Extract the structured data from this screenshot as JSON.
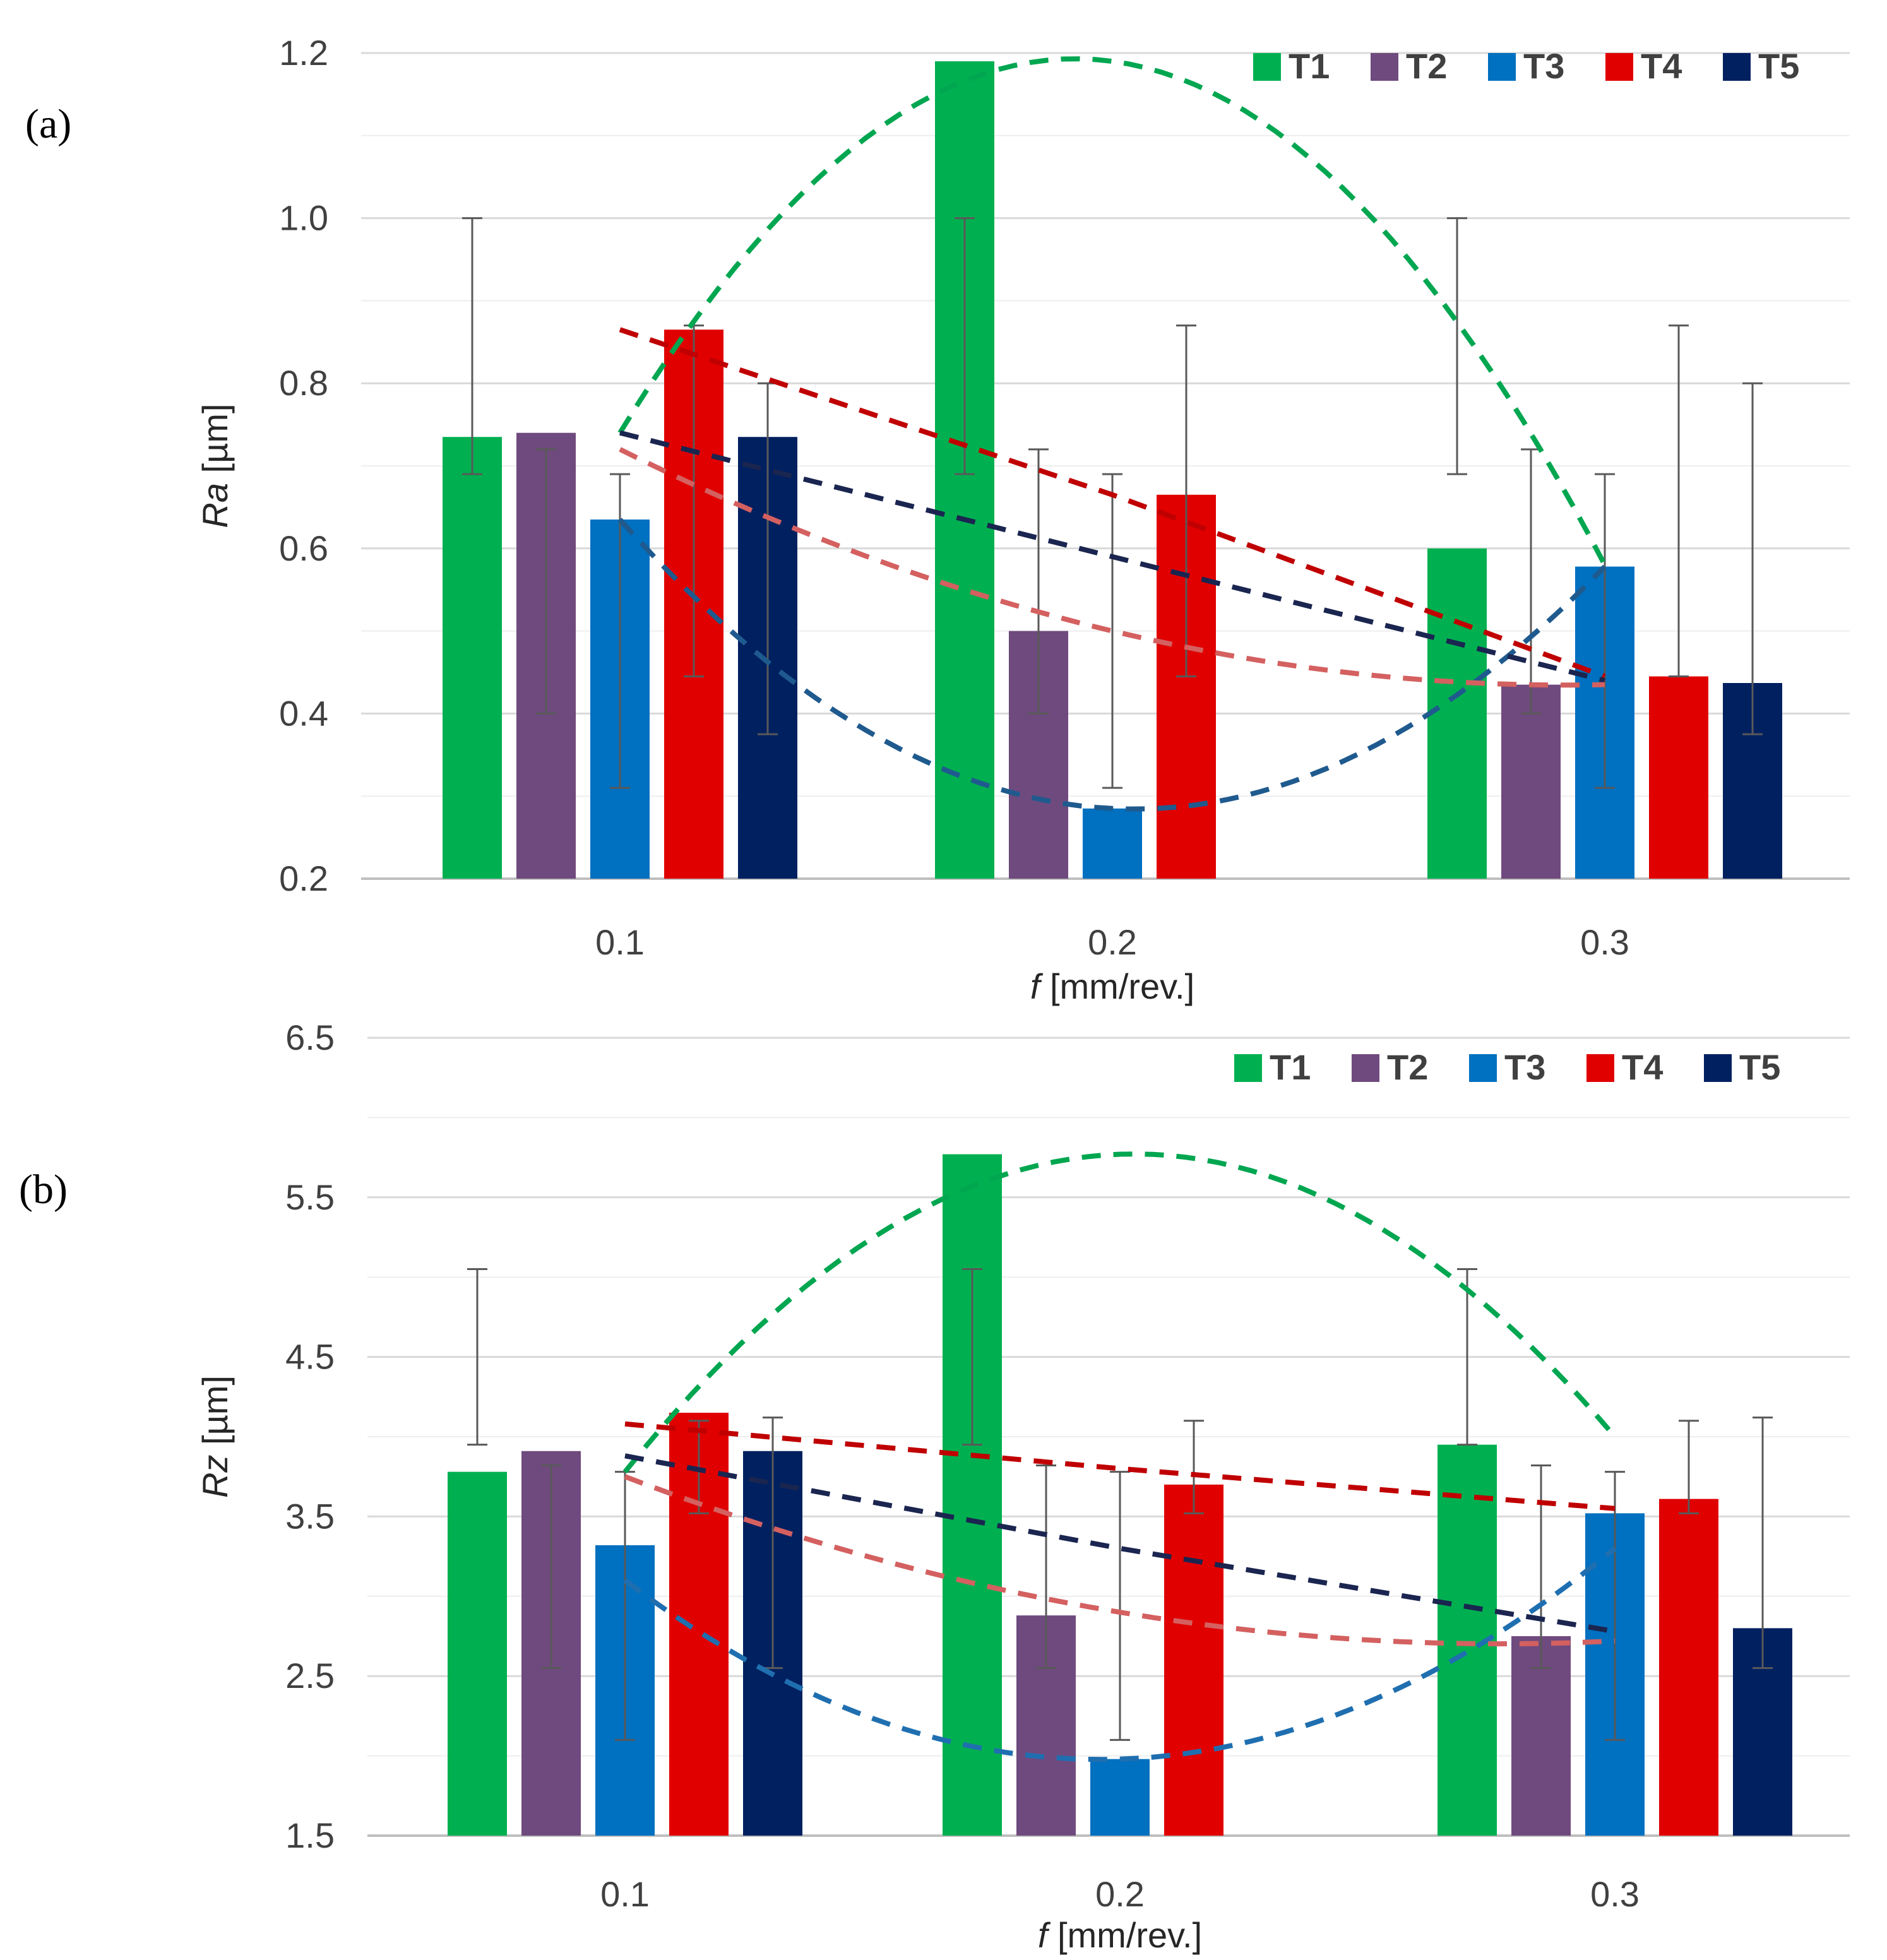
{
  "chart_data": [
    {
      "panel_label": "(a)",
      "type": "bar",
      "categories": [
        "0.1",
        "0.2",
        "0.3"
      ],
      "xlabel_italic": "f",
      "xlabel_rest": " [mm/rev.]",
      "ylabel_italic": "Ra",
      "ylabel_rest": " [µm]",
      "ylim": [
        0.2,
        1.2
      ],
      "yticks": [
        "0.2",
        "0.4",
        "0.6",
        "0.8",
        "1.0",
        "1.2"
      ],
      "grid": true,
      "legend_position": "top-right",
      "series": [
        {
          "name": "T1",
          "color": "#00B050",
          "values": [
            0.735,
            1.19,
            0.6
          ],
          "error_low": [
            0.69,
            0.69,
            0.69
          ],
          "error_high": [
            1.0,
            1.0,
            1.0
          ]
        },
        {
          "name": "T2",
          "color": "#6F4A7E",
          "values": [
            0.74,
            0.5,
            0.435
          ],
          "error_low": [
            0.4,
            0.4,
            0.4
          ],
          "error_high": [
            0.72,
            0.72,
            0.72
          ]
        },
        {
          "name": "T3",
          "color": "#0070C0",
          "values": [
            0.635,
            0.285,
            0.578
          ],
          "error_low": [
            0.31,
            0.31,
            0.31
          ],
          "error_high": [
            0.69,
            0.69,
            0.69
          ]
        },
        {
          "name": "T4",
          "color": "#E00000",
          "values": [
            0.865,
            0.665,
            0.445
          ],
          "error_low": [
            0.445,
            0.445,
            0.445
          ],
          "error_high": [
            0.87,
            0.87,
            0.87
          ]
        },
        {
          "name": "T5",
          "color": "#002060",
          "values": [
            0.735,
            null,
            0.437
          ],
          "error_low": [
            0.375,
            null,
            0.375
          ],
          "error_high": [
            0.8,
            null,
            0.8
          ]
        }
      ],
      "trend_lines": [
        {
          "color": "#00A650",
          "curve": "quadratic",
          "points": [
            [
              0.1,
              0.74
            ],
            [
              0.2,
              1.19
            ],
            [
              0.3,
              0.58
            ]
          ]
        },
        {
          "color": "#1F5A8E",
          "curve": "quadratic",
          "points": [
            [
              0.1,
              0.635
            ],
            [
              0.2,
              0.285
            ],
            [
              0.3,
              0.578
            ]
          ]
        },
        {
          "color": "#C00000",
          "curve": "linear",
          "points": [
            [
              0.1,
              0.865
            ],
            [
              0.2,
              0.665
            ],
            [
              0.3,
              0.445
            ]
          ]
        },
        {
          "color": "#1A2550",
          "curve": "linear",
          "points": [
            [
              0.1,
              0.74
            ],
            [
              0.2,
              0.59
            ],
            [
              0.3,
              0.44
            ]
          ]
        },
        {
          "color": "#D46060",
          "curve": "quadratic",
          "points": [
            [
              0.1,
              0.72
            ],
            [
              0.2,
              0.5
            ],
            [
              0.3,
              0.435
            ]
          ]
        }
      ]
    },
    {
      "panel_label": "(b)",
      "type": "bar",
      "categories": [
        "0.1",
        "0.2",
        "0.3"
      ],
      "xlabel_italic": "f",
      "xlabel_rest": " [mm/rev.]",
      "ylabel_italic": "Rz",
      "ylabel_rest": " [µm]",
      "ylim": [
        1.5,
        6.5
      ],
      "yticks": [
        "1.5",
        "2.5",
        "3.5",
        "4.5",
        "5.5",
        "6.5"
      ],
      "grid": true,
      "legend_position": "top-right",
      "series": [
        {
          "name": "T1",
          "color": "#00B050",
          "values": [
            3.78,
            5.77,
            3.95
          ],
          "error_low": [
            3.95,
            3.95,
            3.95
          ],
          "error_high": [
            5.05,
            5.05,
            5.05
          ]
        },
        {
          "name": "T2",
          "color": "#6F4A7E",
          "values": [
            3.91,
            2.88,
            2.75
          ],
          "error_low": [
            2.55,
            2.55,
            2.55
          ],
          "error_high": [
            3.82,
            3.82,
            3.82
          ]
        },
        {
          "name": "T3",
          "color": "#0070C0",
          "values": [
            3.32,
            1.98,
            3.52
          ],
          "error_low": [
            2.1,
            2.1,
            2.1
          ],
          "error_high": [
            3.78,
            3.78,
            3.78
          ]
        },
        {
          "name": "T4",
          "color": "#E00000",
          "values": [
            4.15,
            3.7,
            3.61
          ],
          "error_low": [
            3.52,
            3.52,
            3.52
          ],
          "error_high": [
            4.1,
            4.1,
            4.1
          ]
        },
        {
          "name": "T5",
          "color": "#002060",
          "values": [
            3.91,
            null,
            2.8
          ],
          "error_low": [
            2.55,
            null,
            2.55
          ],
          "error_high": [
            4.12,
            null,
            4.12
          ]
        }
      ],
      "trend_lines": [
        {
          "color": "#00A650",
          "curve": "quadratic",
          "points": [
            [
              0.1,
              3.78
            ],
            [
              0.2,
              5.77
            ],
            [
              0.3,
              4.0
            ]
          ]
        },
        {
          "color": "#1F6FB0",
          "curve": "quadratic",
          "points": [
            [
              0.1,
              3.1
            ],
            [
              0.2,
              1.98
            ],
            [
              0.3,
              3.3
            ]
          ]
        },
        {
          "color": "#C00000",
          "curve": "linear",
          "points": [
            [
              0.1,
              4.08
            ],
            [
              0.2,
              3.8
            ],
            [
              0.3,
              3.55
            ]
          ]
        },
        {
          "color": "#1A2550",
          "curve": "linear",
          "points": [
            [
              0.1,
              3.88
            ],
            [
              0.2,
              3.3
            ],
            [
              0.3,
              2.78
            ]
          ]
        },
        {
          "color": "#D46060",
          "curve": "quadratic",
          "points": [
            [
              0.1,
              3.75
            ],
            [
              0.2,
              2.9
            ],
            [
              0.3,
              2.72
            ]
          ]
        }
      ]
    }
  ]
}
